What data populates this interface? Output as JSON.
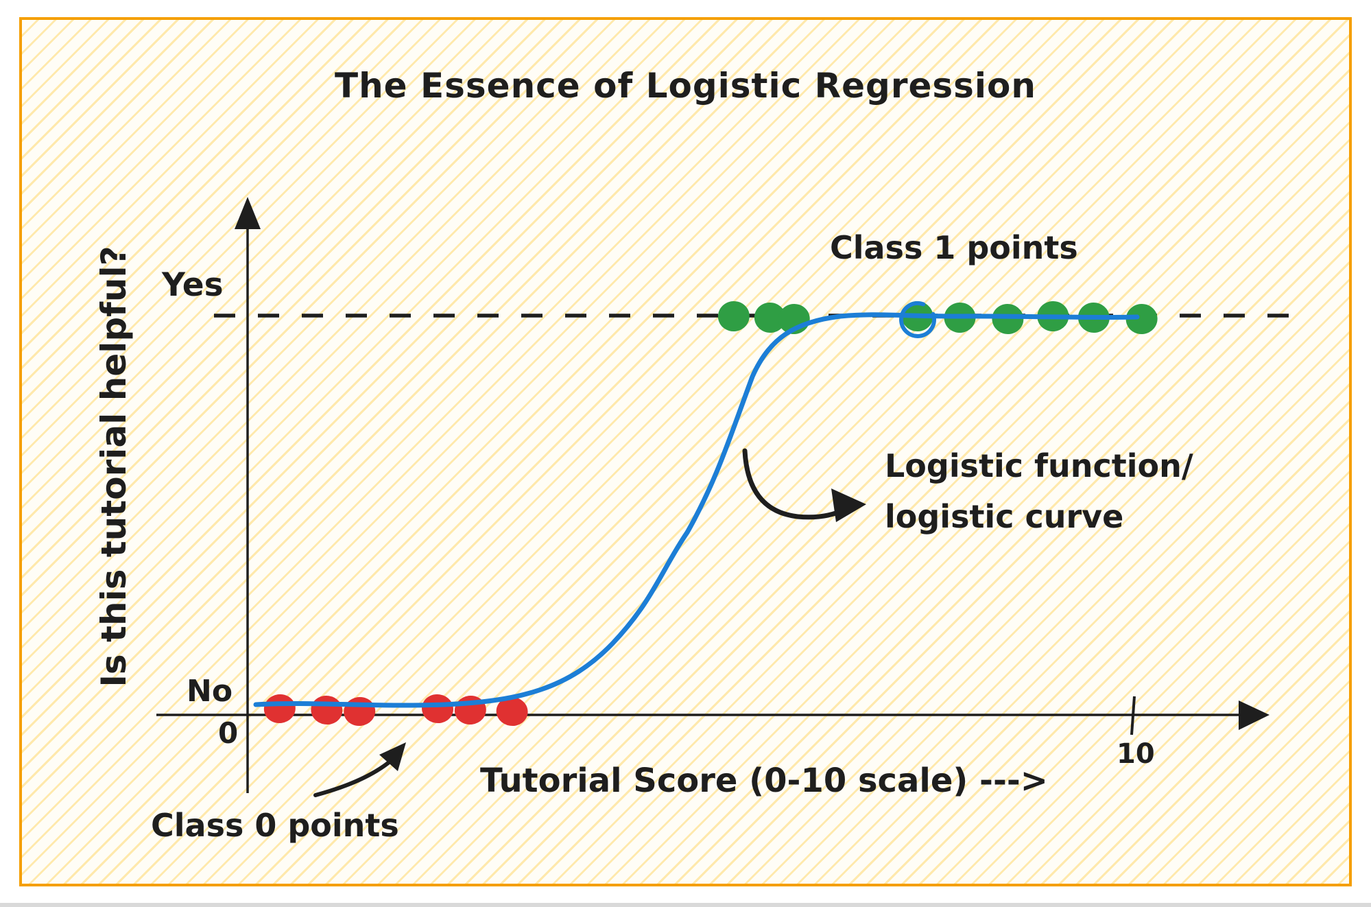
{
  "frame": {
    "border_color": "#f59f00",
    "hatch_color": "#ffc832",
    "paper_color": "#fffdf6",
    "ink_color": "#1e1e1e"
  },
  "title": "The Essence of Logistic Regression",
  "axes": {
    "y_label": "Is this tutorial helpful?",
    "x_label": "Tutorial Score (0-10 scale) --->",
    "y_tick_yes": "Yes",
    "y_tick_no": "No",
    "x_tick_origin": "0",
    "x_tick_max": "10"
  },
  "annotations": {
    "class1": "Class 1 points",
    "class0": "Class 0 points",
    "curve_label_line1": "Logistic function/",
    "curve_label_line2": "logistic curve"
  },
  "chart_data": {
    "type": "scatter",
    "title": "The Essence of Logistic Regression",
    "xlabel": "Tutorial Score (0-10 scale) --->",
    "ylabel": "Is this tutorial helpful?",
    "xlim": [
      0,
      10
    ],
    "ylim": [
      0,
      1
    ],
    "grid": false,
    "legend_position": "none",
    "x_axis_ticks": [
      {
        "value": 0,
        "label": "0"
      },
      {
        "value": 10,
        "label": "10"
      }
    ],
    "y_axis_ticks": [
      {
        "value": 0,
        "label": "No"
      },
      {
        "value": 1,
        "label": "Yes"
      }
    ],
    "reference_lines": [
      {
        "axis": "y",
        "value": 1,
        "style": "dashed",
        "color": "#1e1e1e",
        "label": "Yes"
      }
    ],
    "series": [
      {
        "name": "Class 0 points",
        "type": "scatter",
        "color": "#e03131",
        "y": 0,
        "x": [
          0.37,
          0.9,
          1.27,
          2.15,
          2.52,
          2.99
        ]
      },
      {
        "name": "Class 1 points",
        "type": "scatter",
        "color": "#2f9e44",
        "y": 1,
        "x": [
          5.49,
          5.9,
          6.17,
          7.56,
          8.04,
          8.58,
          9.09,
          9.55,
          10.09
        ]
      },
      {
        "name": "Logistic function / logistic curve",
        "type": "line",
        "color": "#1c7ed6",
        "equation": "y = 1 / (1 + e^-(x - 5))",
        "description": "S-shaped sigmoid rising from y=0 (No) to y=1 (Yes) with midpoint near score 5"
      }
    ]
  }
}
